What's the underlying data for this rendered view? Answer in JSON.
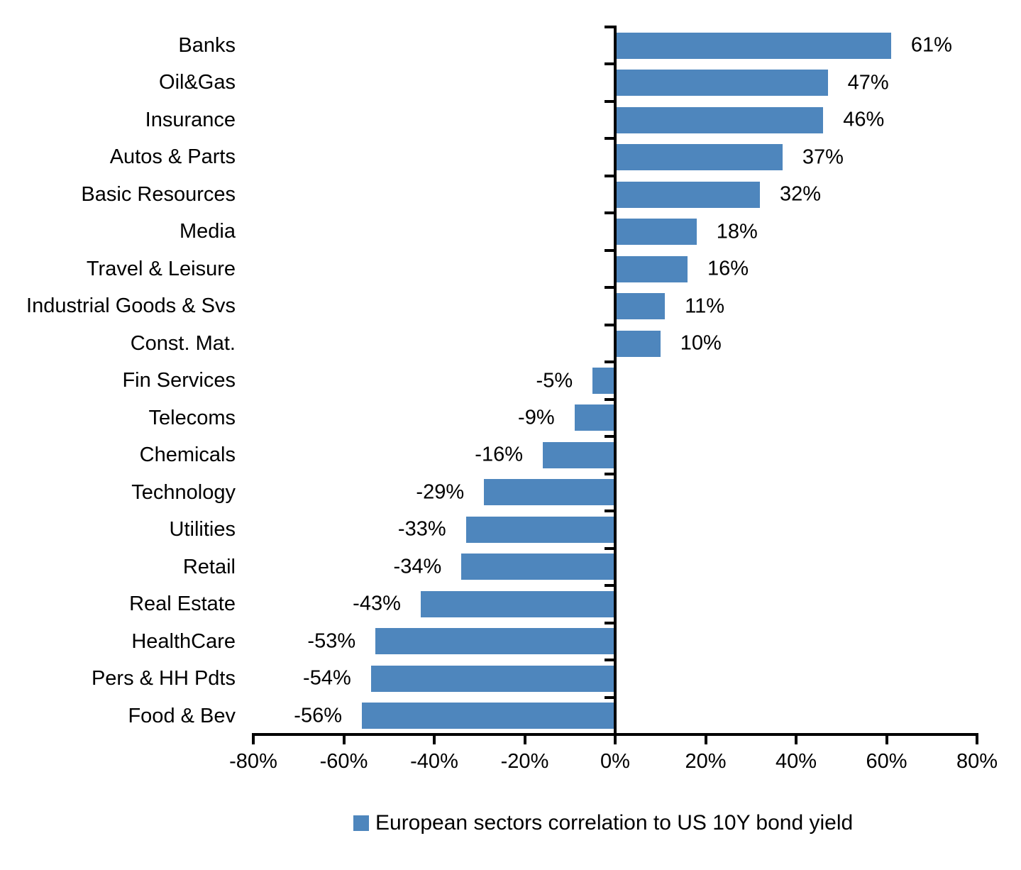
{
  "chart_data": {
    "type": "bar",
    "orientation": "horizontal",
    "title": "",
    "xlabel": "",
    "ylabel": "",
    "categories": [
      "Banks",
      "Oil&Gas",
      "Insurance",
      "Autos & Parts",
      "Basic Resources",
      "Media",
      "Travel & Leisure",
      "Industrial Goods & Svs",
      "Const. Mat.",
      "Fin Services",
      "Telecoms",
      "Chemicals",
      "Technology",
      "Utilities",
      "Retail",
      "Real Estate",
      "HealthCare",
      "Pers & HH Pdts",
      "Food & Bev"
    ],
    "values": [
      61,
      47,
      46,
      37,
      32,
      18,
      16,
      11,
      10,
      -5,
      -9,
      -16,
      -29,
      -33,
      -34,
      -43,
      -53,
      -54,
      -56
    ],
    "value_labels": [
      "61%",
      "47%",
      "46%",
      "37%",
      "32%",
      "18%",
      "16%",
      "11%",
      "10%",
      "-5%",
      "-9%",
      "-16%",
      "-29%",
      "-33%",
      "-34%",
      "-43%",
      "-53%",
      "-54%",
      "-56%"
    ],
    "xlim": [
      -80,
      80
    ],
    "x_ticks": [
      -80,
      -60,
      -40,
      -20,
      0,
      20,
      40,
      60,
      80
    ],
    "x_tick_labels": [
      "-80%",
      "-60%",
      "-40%",
      "-20%",
      "0%",
      "20%",
      "40%",
      "60%",
      "80%"
    ],
    "grid": false,
    "bar_color": "#4E86BD",
    "axis_color": "#000000",
    "legend": {
      "position": "bottom",
      "entries": [
        {
          "label": "European sectors correlation to US 10Y bond yield",
          "color": "#4E86BD"
        }
      ]
    }
  }
}
